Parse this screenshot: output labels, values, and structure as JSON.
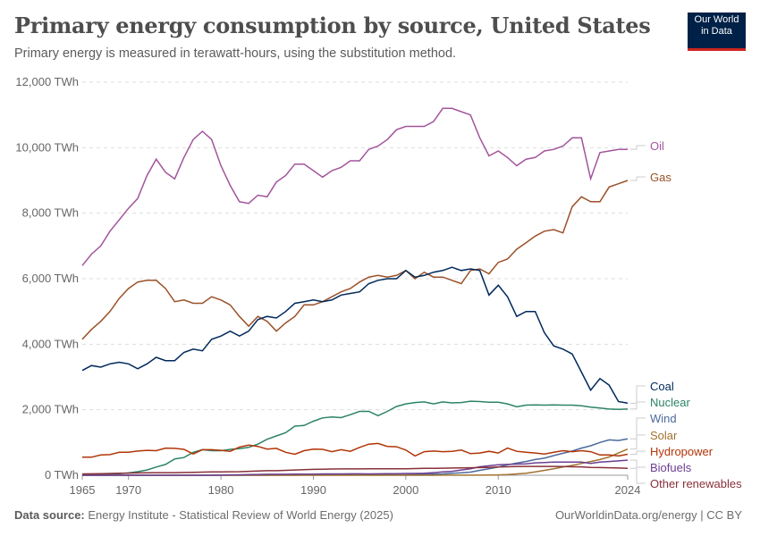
{
  "header": {
    "title": "Primary energy consumption by source, United States",
    "subtitle": "Primary energy is measured in terawatt-hours, using the substitution method.",
    "logo": "Our World in Data"
  },
  "footer": {
    "source_label": "Data source:",
    "source": "Energy Institute - Statistical Review of World Energy (2025)",
    "credit": "OurWorldinData.org/energy | CC BY"
  },
  "chart_data": {
    "type": "line",
    "title": "Primary energy consumption by source, United States",
    "ylim": [
      0,
      12000
    ],
    "xlim": [
      1965,
      2024
    ],
    "yticks": [
      0,
      2000,
      4000,
      6000,
      8000,
      10000,
      12000
    ],
    "ytick_labels": [
      "0 TWh",
      "2,000 TWh",
      "4,000 TWh",
      "6,000 TWh",
      "8,000 TWh",
      "10,000 TWh",
      "12,000 TWh"
    ],
    "xticks": [
      1965,
      1970,
      1980,
      1990,
      2000,
      2010,
      2024
    ],
    "grid": "horizontal dashed",
    "legend": "right, line-end labels",
    "start_year": 1965,
    "series": [
      {
        "name": "Oil",
        "color": "#a2559c",
        "values": [
          6400,
          6750,
          7000,
          7450,
          7800,
          8150,
          8450,
          9150,
          9650,
          9250,
          9050,
          9700,
          10250,
          10500,
          10250,
          9450,
          8850,
          8350,
          8300,
          8550,
          8500,
          8950,
          9150,
          9500,
          9500,
          9300,
          9100,
          9300,
          9400,
          9600,
          9600,
          9950,
          10050,
          10250,
          10550,
          10650,
          10650,
          10650,
          10800,
          11200,
          11200,
          11100,
          11000,
          10300,
          9750,
          9900,
          9700,
          9450,
          9650,
          9700,
          9900,
          9950,
          10050,
          10300,
          10300,
          9050,
          9850,
          9900,
          9950,
          9950
        ]
      },
      {
        "name": "Gas",
        "color": "#9a5129",
        "values": [
          4150,
          4450,
          4700,
          5000,
          5400,
          5700,
          5900,
          5950,
          5950,
          5700,
          5300,
          5350,
          5250,
          5250,
          5450,
          5350,
          5200,
          4850,
          4550,
          4850,
          4700,
          4400,
          4650,
          4850,
          5200,
          5200,
          5300,
          5450,
          5600,
          5700,
          5900,
          6050,
          6100,
          6050,
          6100,
          6250,
          6000,
          6200,
          6050,
          6050,
          5950,
          5850,
          6250,
          6300,
          6150,
          6500,
          6600,
          6900,
          7100,
          7300,
          7450,
          7500,
          7400,
          8200,
          8500,
          8350,
          8350,
          8800,
          8900,
          9000
        ]
      },
      {
        "name": "Coal",
        "color": "#00295b",
        "values": [
          3200,
          3350,
          3300,
          3400,
          3450,
          3400,
          3250,
          3400,
          3600,
          3500,
          3500,
          3750,
          3850,
          3800,
          4150,
          4250,
          4400,
          4250,
          4400,
          4750,
          4850,
          4800,
          5000,
          5250,
          5300,
          5350,
          5300,
          5350,
          5500,
          5550,
          5600,
          5850,
          5950,
          6000,
          6000,
          6250,
          6050,
          6100,
          6200,
          6250,
          6350,
          6250,
          6300,
          6250,
          5500,
          5800,
          5450,
          4850,
          5000,
          5000,
          4350,
          3950,
          3850,
          3700,
          3150,
          2600,
          2950,
          2750,
          2250,
          2200
        ]
      },
      {
        "name": "Nuclear",
        "color": "#2c8465",
        "values": [
          10,
          20,
          30,
          40,
          50,
          70,
          110,
          160,
          250,
          330,
          500,
          540,
          700,
          780,
          750,
          750,
          790,
          810,
          850,
          950,
          1100,
          1200,
          1300,
          1500,
          1520,
          1650,
          1750,
          1780,
          1760,
          1850,
          1950,
          1950,
          1820,
          1950,
          2100,
          2180,
          2220,
          2240,
          2180,
          2240,
          2210,
          2220,
          2260,
          2250,
          2230,
          2230,
          2180,
          2090,
          2140,
          2150,
          2140,
          2150,
          2140,
          2140,
          2120,
          2080,
          2050,
          2020,
          2010,
          2020
        ]
      },
      {
        "name": "Wind",
        "color": "#4c6a9c",
        "values": [
          0,
          0,
          0,
          0,
          0,
          0,
          0,
          0,
          0,
          0,
          0,
          0,
          0,
          0,
          0,
          0,
          0,
          0,
          0,
          0,
          1,
          2,
          3,
          4,
          5,
          6,
          7,
          8,
          8,
          9,
          9,
          9,
          9,
          10,
          12,
          15,
          18,
          30,
          35,
          40,
          60,
          75,
          95,
          150,
          200,
          250,
          320,
          370,
          420,
          480,
          520,
          600,
          670,
          740,
          830,
          900,
          1000,
          1080,
          1060,
          1110
        ]
      },
      {
        "name": "Solar",
        "color": "#a2722f",
        "values": [
          0,
          0,
          0,
          0,
          0,
          0,
          0,
          0,
          0,
          0,
          0,
          0,
          0,
          0,
          0,
          0,
          0,
          0,
          0,
          0,
          0,
          0,
          0,
          0,
          0,
          1,
          1,
          1,
          1,
          1,
          1,
          1,
          1,
          1,
          1,
          1,
          1,
          1,
          1,
          2,
          2,
          2,
          3,
          4,
          5,
          10,
          20,
          40,
          60,
          100,
          150,
          200,
          250,
          300,
          360,
          420,
          480,
          560,
          680,
          800
        ]
      },
      {
        "name": "Hydropower",
        "color": "#b13507",
        "values": [
          550,
          550,
          620,
          630,
          700,
          700,
          740,
          760,
          750,
          830,
          820,
          790,
          650,
          780,
          780,
          760,
          730,
          860,
          920,
          880,
          800,
          820,
          700,
          640,
          750,
          800,
          790,
          720,
          780,
          730,
          850,
          950,
          970,
          880,
          870,
          770,
          590,
          720,
          740,
          720,
          730,
          770,
          660,
          680,
          730,
          680,
          830,
          730,
          700,
          680,
          650,
          700,
          750,
          720,
          750,
          720,
          620,
          620,
          590,
          640
        ]
      },
      {
        "name": "Biofuels",
        "color": "#6d3e91",
        "values": [
          0,
          0,
          0,
          0,
          0,
          0,
          0,
          0,
          0,
          0,
          0,
          0,
          0,
          0,
          0,
          5,
          10,
          15,
          20,
          25,
          30,
          30,
          30,
          35,
          35,
          35,
          40,
          40,
          40,
          45,
          45,
          40,
          45,
          50,
          50,
          55,
          55,
          60,
          80,
          100,
          120,
          160,
          200,
          260,
          290,
          320,
          330,
          340,
          350,
          380,
          390,
          400,
          400,
          400,
          400,
          360,
          400,
          420,
          440,
          460
        ]
      },
      {
        "name": "Other renewables",
        "color": "#883039",
        "values": [
          40,
          45,
          50,
          55,
          60,
          65,
          70,
          75,
          80,
          80,
          80,
          85,
          90,
          95,
          100,
          100,
          105,
          110,
          120,
          130,
          140,
          140,
          150,
          160,
          170,
          180,
          185,
          190,
          195,
          195,
          195,
          200,
          200,
          200,
          200,
          200,
          205,
          210,
          210,
          215,
          220,
          225,
          230,
          235,
          240,
          250,
          260,
          265,
          270,
          270,
          270,
          270,
          265,
          260,
          255,
          240,
          235,
          230,
          220,
          210
        ]
      }
    ]
  }
}
